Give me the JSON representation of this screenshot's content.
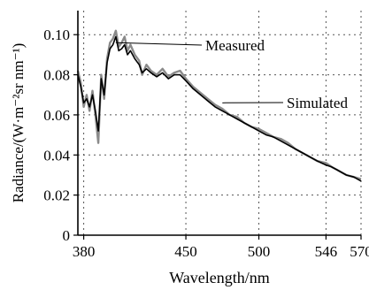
{
  "chart_data": {
    "type": "line",
    "title": "",
    "xlabel": "Wavelength/nm",
    "ylabel": "Radiance/(W·m⁻²sr nm⁻¹)",
    "xlim": [
      376,
      570
    ],
    "ylim": [
      0,
      0.112
    ],
    "x_ticks": [
      380,
      450,
      500,
      546,
      570
    ],
    "y_ticks": [
      0,
      0.02,
      0.04,
      0.06,
      0.08,
      0.1
    ],
    "y_tick_labels": [
      "0",
      "0.02",
      "0.04",
      "0.06",
      "0.08",
      "0.10"
    ],
    "grid": true,
    "series": [
      {
        "name": "Measured",
        "color": "#8a8a8a",
        "x": [
          376,
          378,
          380,
          382,
          384,
          386,
          388,
          390,
          392,
          394,
          396,
          398,
          400,
          402,
          404,
          406,
          408,
          410,
          412,
          415,
          418,
          420,
          423,
          426,
          430,
          434,
          438,
          442,
          446,
          450,
          455,
          460,
          465,
          470,
          475,
          480,
          485,
          490,
          495,
          500,
          505,
          510,
          515,
          520,
          525,
          530,
          535,
          540,
          546,
          550,
          555,
          560,
          565,
          570
        ],
        "y": [
          0.082,
          0.076,
          0.064,
          0.07,
          0.062,
          0.072,
          0.06,
          0.046,
          0.08,
          0.068,
          0.088,
          0.096,
          0.098,
          0.102,
          0.094,
          0.096,
          0.099,
          0.092,
          0.095,
          0.09,
          0.087,
          0.08,
          0.085,
          0.082,
          0.08,
          0.083,
          0.079,
          0.081,
          0.082,
          0.078,
          0.074,
          0.071,
          0.068,
          0.065,
          0.063,
          0.06,
          0.059,
          0.056,
          0.054,
          0.053,
          0.051,
          0.049,
          0.048,
          0.046,
          0.043,
          0.041,
          0.039,
          0.037,
          0.036,
          0.034,
          0.032,
          0.03,
          0.029,
          0.028
        ]
      },
      {
        "name": "Simulated",
        "color": "#000000",
        "x": [
          376,
          378,
          380,
          382,
          384,
          386,
          388,
          390,
          392,
          394,
          396,
          398,
          400,
          402,
          404,
          406,
          408,
          410,
          412,
          415,
          418,
          420,
          423,
          426,
          430,
          434,
          438,
          442,
          446,
          450,
          455,
          460,
          465,
          470,
          475,
          480,
          485,
          490,
          495,
          500,
          505,
          510,
          515,
          520,
          525,
          530,
          535,
          540,
          546,
          550,
          555,
          560,
          565,
          570
        ],
        "y": [
          0.08,
          0.074,
          0.066,
          0.068,
          0.064,
          0.07,
          0.062,
          0.052,
          0.078,
          0.07,
          0.086,
          0.093,
          0.095,
          0.099,
          0.092,
          0.093,
          0.095,
          0.09,
          0.092,
          0.088,
          0.085,
          0.081,
          0.083,
          0.081,
          0.079,
          0.081,
          0.078,
          0.08,
          0.08,
          0.077,
          0.073,
          0.07,
          0.067,
          0.064,
          0.062,
          0.06,
          0.058,
          0.056,
          0.054,
          0.052,
          0.05,
          0.049,
          0.047,
          0.045,
          0.043,
          0.041,
          0.039,
          0.037,
          0.035,
          0.034,
          0.032,
          0.03,
          0.029,
          0.027
        ]
      }
    ],
    "annotations": [
      {
        "text": "Measured",
        "points_to": {
          "x": 402,
          "y": 0.096
        }
      },
      {
        "text": "Simulated",
        "points_to": {
          "x": 475,
          "y": 0.066
        }
      }
    ]
  }
}
